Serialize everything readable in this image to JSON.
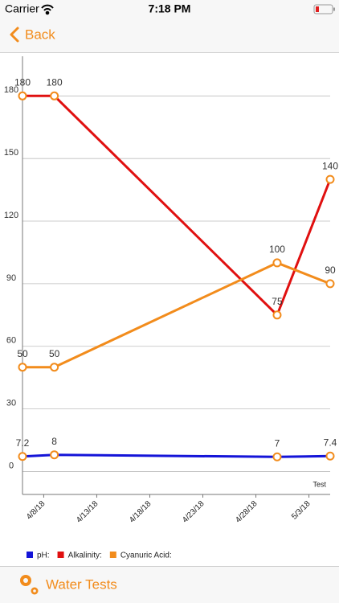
{
  "status_bar": {
    "carrier": "Carrier",
    "time": "7:18 PM"
  },
  "nav": {
    "back": "Back"
  },
  "chart_data": {
    "type": "line",
    "x": [
      "2018-04-06",
      "2018-04-09",
      "2018-04-30",
      "2018-05-05"
    ],
    "xlim": [
      "2018-04-06",
      "2018-05-05"
    ],
    "xticks": [
      {
        "value": "2018-04-08",
        "label": "4/8/18"
      },
      {
        "value": "2018-04-13",
        "label": "4/13/18"
      },
      {
        "value": "2018-04-18",
        "label": "4/18/18"
      },
      {
        "value": "2018-04-23",
        "label": "4/23/18"
      },
      {
        "value": "2018-04-28",
        "label": "4/28/18"
      },
      {
        "value": "2018-05-03",
        "label": "5/3/18"
      }
    ],
    "xlabel": "Test",
    "ylim": [
      -11,
      199
    ],
    "yticks": [
      0,
      30,
      60,
      90,
      120,
      150,
      180
    ],
    "grid": true,
    "marker_color": "#f28c1c",
    "series": [
      {
        "name": "pH:",
        "color": "#1414d8",
        "values": [
          7.2,
          8,
          7,
          7.4
        ]
      },
      {
        "name": "Alkalinity:",
        "color": "#e01010",
        "values": [
          180,
          180,
          75,
          140
        ]
      },
      {
        "name": "Cyanuric Acid:",
        "color": "#f28c1c",
        "values": [
          50,
          50,
          100,
          90
        ]
      }
    ]
  },
  "tab_bar": {
    "label": "Water Tests"
  }
}
